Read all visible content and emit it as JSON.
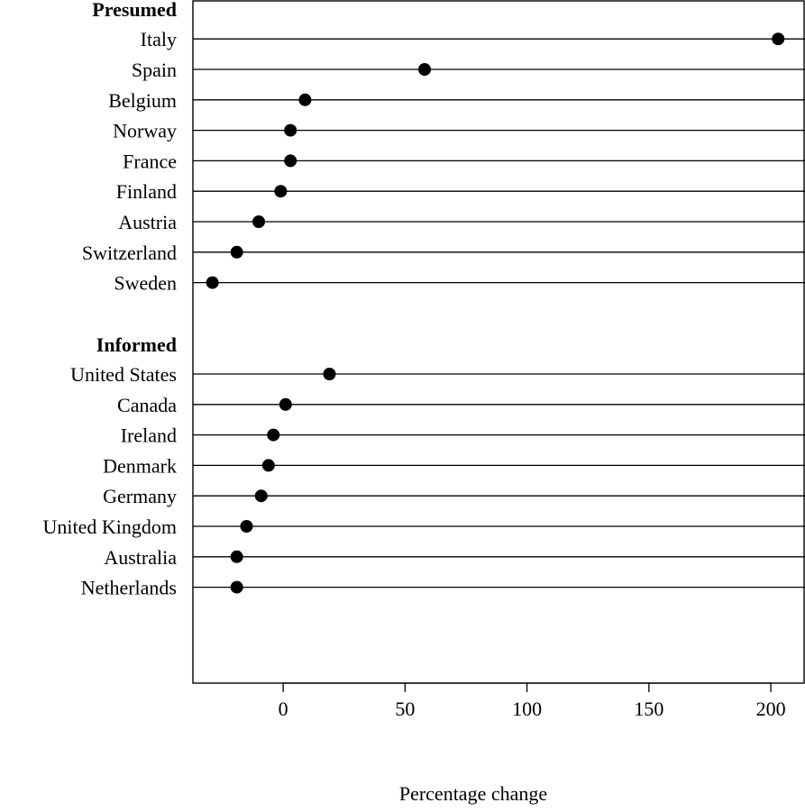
{
  "chart_data": {
    "type": "scatter",
    "xlabel": "Percentage change",
    "ylabel": "",
    "title": "",
    "xlim": [
      -37,
      214
    ],
    "xticks": [
      0,
      50,
      100,
      150,
      200
    ],
    "xtick_labels": [
      "0",
      "50",
      "100",
      "150",
      "200"
    ],
    "groups": [
      {
        "name": "Presumed",
        "items": [
          {
            "label": "Italy",
            "value": 203
          },
          {
            "label": "Spain",
            "value": 58
          },
          {
            "label": "Belgium",
            "value": 9
          },
          {
            "label": "Norway",
            "value": 3
          },
          {
            "label": "France",
            "value": 3
          },
          {
            "label": "Finland",
            "value": -1
          },
          {
            "label": "Austria",
            "value": -10
          },
          {
            "label": "Switzerland",
            "value": -19
          },
          {
            "label": "Sweden",
            "value": -29
          }
        ]
      },
      {
        "name": "Informed",
        "items": [
          {
            "label": "United States",
            "value": 19
          },
          {
            "label": "Canada",
            "value": 1
          },
          {
            "label": "Ireland",
            "value": -4
          },
          {
            "label": "Denmark",
            "value": -6
          },
          {
            "label": "Germany",
            "value": -9
          },
          {
            "label": "United Kingdom",
            "value": -15
          },
          {
            "label": "Australia",
            "value": -19
          },
          {
            "label": "Netherlands",
            "value": -19
          }
        ]
      }
    ],
    "grid": false,
    "colors": {
      "points": "#000000",
      "lines": "#000000"
    }
  }
}
